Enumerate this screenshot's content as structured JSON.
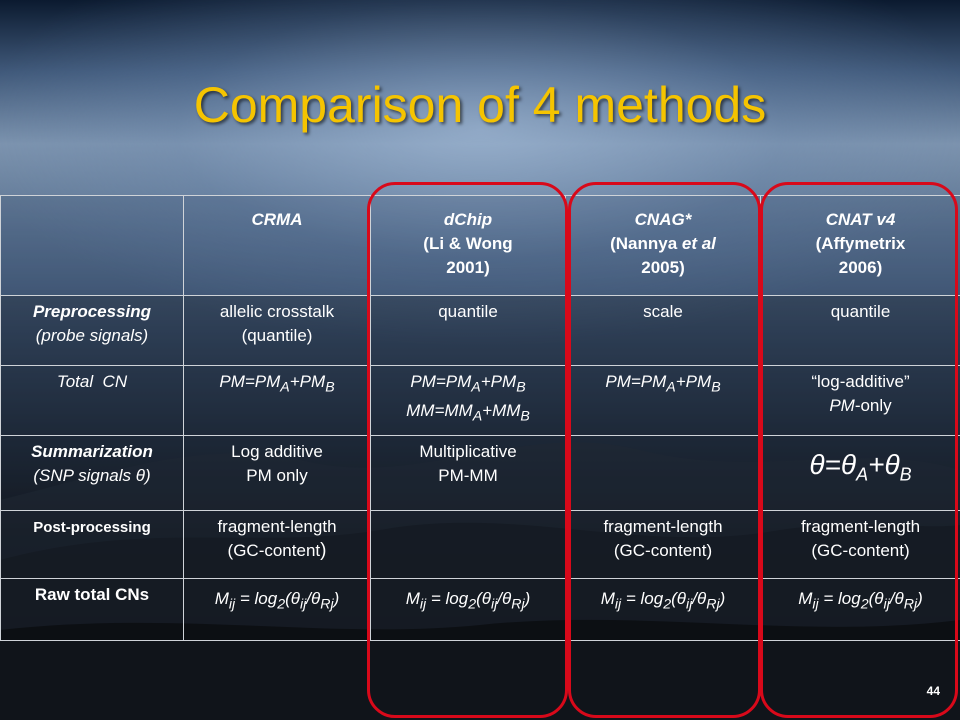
{
  "slide": {
    "title": "Comparison of 4 methods",
    "page_number": "44"
  },
  "colors": {
    "title": "#f5c400",
    "oval": "#d8091a"
  },
  "table": {
    "headers": {
      "c1": "CRMA",
      "c2_line1": "dChip",
      "c2_line2": "(Li & Wong",
      "c2_line3": "2001)",
      "c3_line1": "CNAG*",
      "c3_line2a": "(Nannya ",
      "c3_line2b": "et al",
      "c3_line3": "2005)",
      "c4_line1": "CNAT v4",
      "c4_line2": "(Affymetrix",
      "c4_line3": "2006)"
    },
    "preprocessing": {
      "label1": "Preprocessing",
      "label2": "(probe signals)",
      "c1a": "allelic crosstalk",
      "c1b": "(quantile)",
      "c2": "quantile",
      "c3": "scale",
      "c4": "quantile"
    },
    "total_cn": {
      "label": "Total  CN",
      "pm_eq": "PM=PM",
      "mm_eq": "MM=MM",
      "sub_a": "A",
      "sub_b": "B",
      "plus_pm": "+PM",
      "plus_mm": "+MM",
      "c4a": "“log-additive”",
      "c4b_it": "PM",
      "c4b_rest": "-only"
    },
    "summarization": {
      "label1": "Summarization",
      "label2": "(SNP signals θ)",
      "c1a": "Log additive",
      "c1b": "PM only",
      "c2a": "Multiplicative",
      "c2b": "PM-MM",
      "c3": "",
      "c4_theta": "θ",
      "c4_eq": "=",
      "c4_plus": "+"
    },
    "postprocessing": {
      "label": "Post-processing",
      "c1a": "fragment-length",
      "c1b": "(GC-content",
      "c1b_paren": ")",
      "c2": "",
      "c3a": "fragment-length",
      "c3b": "(GC-content)",
      "c4a": "fragment-length",
      "c4b": "(GC-content)"
    },
    "raw": {
      "label": "Raw total CNs",
      "m": "M",
      "ij": "ij",
      "eq_log": " = log",
      "two": "2",
      "open": "(",
      "theta": "θ",
      "slash": "/",
      "rj": "Rj",
      "close": ")"
    }
  }
}
